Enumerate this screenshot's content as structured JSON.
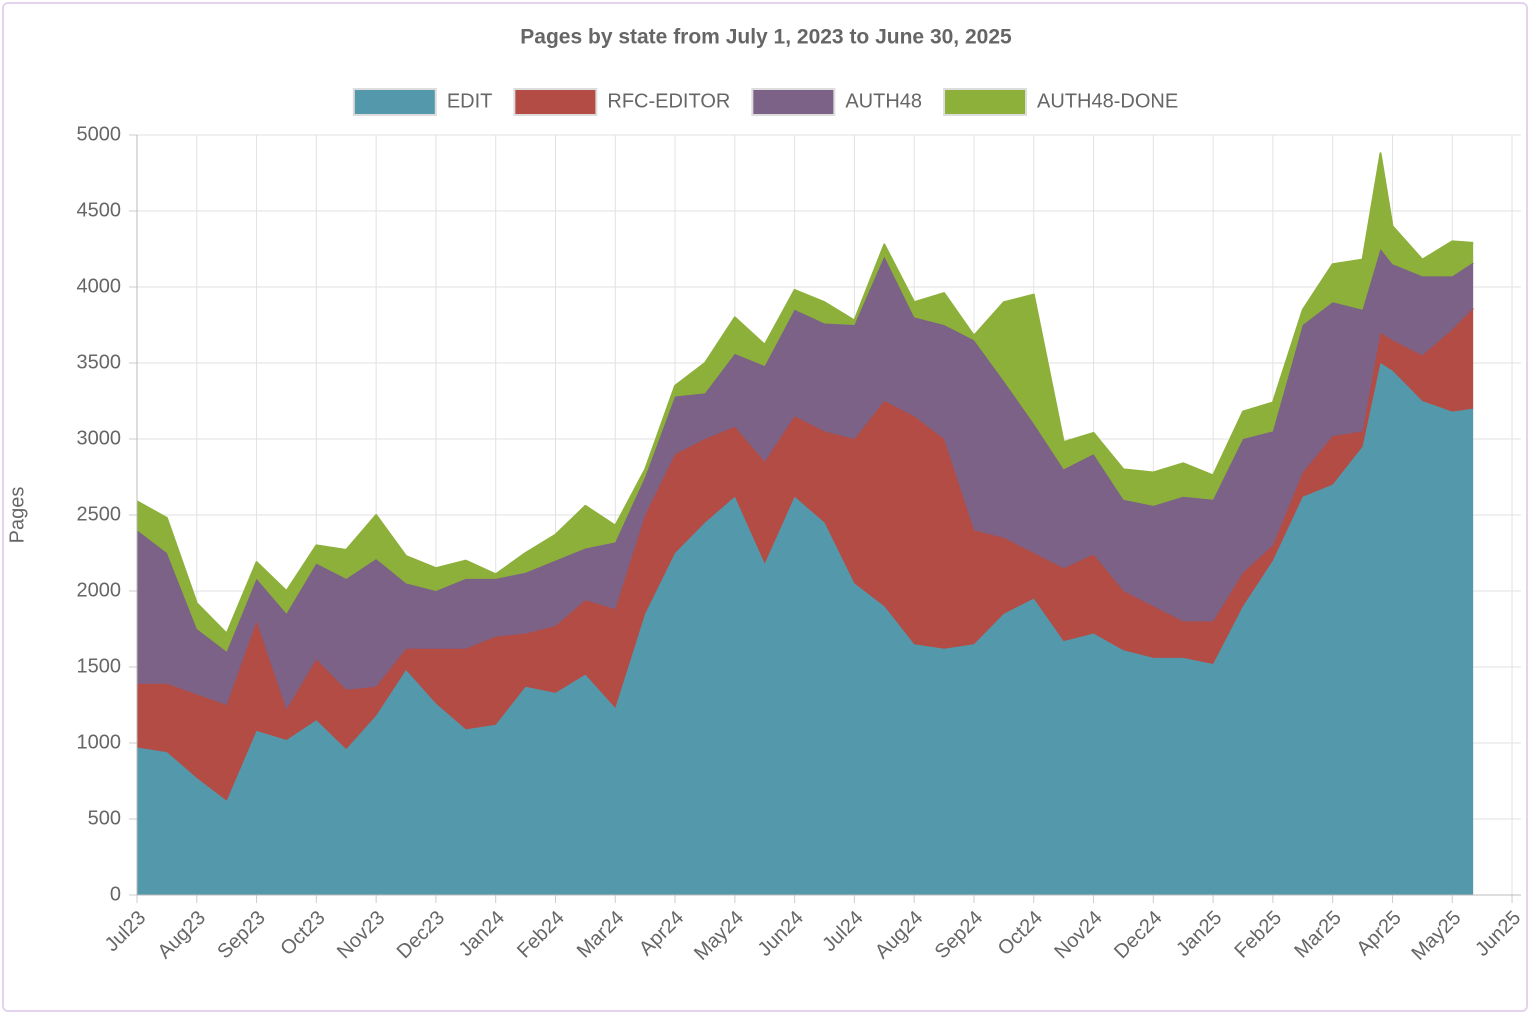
{
  "chart_data": {
    "type": "stacked-area",
    "title": "Pages by state from July 1, 2023 to June 30, 2025",
    "y_label": "Pages",
    "x": [
      0,
      0.5,
      1,
      1.5,
      2,
      2.5,
      3,
      3.5,
      4,
      4.5,
      5,
      5.5,
      6,
      6.5,
      7,
      7.5,
      8,
      8.5,
      9,
      9.5,
      10,
      10.5,
      11,
      11.5,
      12,
      12.5,
      13,
      13.5,
      14,
      14.5,
      15,
      15.5,
      16,
      16.5,
      17,
      17.5,
      18,
      18.5,
      19,
      19.5,
      20,
      20.5,
      20.8,
      21,
      21.5,
      22,
      22.35
    ],
    "series": [
      {
        "name": "EDIT",
        "color": "#5499ab",
        "values": [
          970,
          940,
          770,
          620,
          1080,
          1020,
          1150,
          960,
          1180,
          1480,
          1260,
          1090,
          1120,
          1370,
          1330,
          1450,
          1230,
          1850,
          2250,
          2450,
          2620,
          2180,
          2620,
          2450,
          2050,
          1900,
          1650,
          1620,
          1650,
          1850,
          1950,
          1670,
          1720,
          1610,
          1560,
          1560,
          1520,
          1900,
          2200,
          2620,
          2700,
          2950,
          3500,
          3450,
          3250,
          3180,
          3200
        ]
      },
      {
        "name": "RFC-EDITOR",
        "color": "#b24c45",
        "values": [
          420,
          450,
          550,
          630,
          720,
          200,
          400,
          390,
          190,
          140,
          360,
          530,
          580,
          350,
          440,
          490,
          650,
          650,
          650,
          550,
          460,
          670,
          530,
          600,
          950,
          1350,
          1500,
          1380,
          750,
          500,
          300,
          480,
          520,
          390,
          340,
          240,
          280,
          220,
          100,
          160,
          320,
          100,
          200,
          200,
          300,
          540,
          660
        ]
      },
      {
        "name": "AUTH48",
        "color": "#7b6286",
        "values": [
          1010,
          860,
          430,
          350,
          280,
          630,
          630,
          730,
          840,
          430,
          380,
          460,
          380,
          400,
          430,
          340,
          440,
          250,
          380,
          300,
          480,
          630,
          700,
          710,
          750,
          950,
          650,
          750,
          1250,
          1030,
          850,
          650,
          660,
          600,
          660,
          820,
          800,
          880,
          750,
          970,
          880,
          800,
          550,
          500,
          520,
          350,
          300
        ]
      },
      {
        "name": "AUTH48-DONE",
        "color": "#8db03a",
        "values": [
          190,
          230,
          170,
          120,
          110,
          150,
          120,
          190,
          290,
          180,
          150,
          120,
          30,
          130,
          170,
          280,
          110,
          50,
          70,
          200,
          240,
          140,
          130,
          140,
          30,
          80,
          100,
          210,
          30,
          520,
          850,
          180,
          140,
          200,
          220,
          220,
          160,
          180,
          190,
          100,
          250,
          330,
          630,
          250,
          110,
          230,
          130
        ]
      }
    ],
    "xlim": [
      0,
      23.15
    ],
    "xticks": [
      {
        "value": 0,
        "label": "Jul23"
      },
      {
        "value": 1,
        "label": "Aug23"
      },
      {
        "value": 2,
        "label": "Sep23"
      },
      {
        "value": 3,
        "label": "Oct23"
      },
      {
        "value": 4,
        "label": "Nov23"
      },
      {
        "value": 5,
        "label": "Dec23"
      },
      {
        "value": 6,
        "label": "Jan24"
      },
      {
        "value": 7,
        "label": "Feb24"
      },
      {
        "value": 8,
        "label": "Mar24"
      },
      {
        "value": 9,
        "label": "Apr24"
      },
      {
        "value": 10,
        "label": "May24"
      },
      {
        "value": 11,
        "label": "Jun24"
      },
      {
        "value": 12,
        "label": "Jul24"
      },
      {
        "value": 13,
        "label": "Aug24"
      },
      {
        "value": 14,
        "label": "Sep24"
      },
      {
        "value": 15,
        "label": "Oct24"
      },
      {
        "value": 16,
        "label": "Nov24"
      },
      {
        "value": 17,
        "label": "Dec24"
      },
      {
        "value": 18,
        "label": "Jan25"
      },
      {
        "value": 19,
        "label": "Feb25"
      },
      {
        "value": 20,
        "label": "Mar25"
      },
      {
        "value": 21,
        "label": "Apr25"
      },
      {
        "value": 22,
        "label": "May25"
      },
      {
        "value": 23,
        "label": "Jun25"
      }
    ],
    "ylim": [
      0,
      5000
    ],
    "yticks": [
      0,
      500,
      1000,
      1500,
      2000,
      2500,
      3000,
      3500,
      4000,
      4500,
      5000
    ],
    "grid": true,
    "legend": "top"
  }
}
